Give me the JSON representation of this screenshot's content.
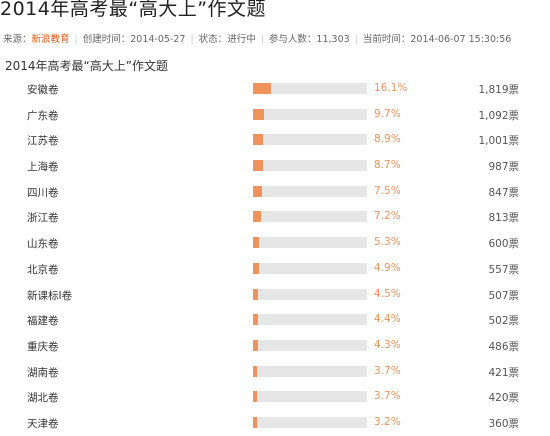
{
  "page_title": "2014年高考最“高大上”作文题",
  "meta": {
    "source_label": "来源：",
    "source_value": "新浪教育",
    "created_label": "创建时间：",
    "created_value": "2014-05-27",
    "status_label": "状态：",
    "status_value": "进行中",
    "participants_label": "参与人数：",
    "participants_value": "11,303",
    "current_time_label": "当前时间：",
    "current_time_value": "2014-06-07 15:30:56"
  },
  "question_title": "2014年高考最“高大上”作文题",
  "colors": {
    "bar_fill": "#f0935b",
    "bar_track": "#e6e6e6",
    "accent": "#e85a10"
  },
  "chart_data": {
    "type": "bar",
    "categories": [
      "安徽卷",
      "广东卷",
      "江苏卷",
      "上海卷",
      "四川卷",
      "浙江卷",
      "山东卷",
      "北京卷",
      "新课标I卷",
      "福建卷",
      "重庆卷",
      "湖南卷",
      "湖北卷",
      "天津卷"
    ],
    "values": [
      16.1,
      9.7,
      8.9,
      8.7,
      7.5,
      7.2,
      5.3,
      4.9,
      4.5,
      4.4,
      4.3,
      3.7,
      3.7,
      3.2
    ],
    "vote_counts": [
      1819,
      1092,
      1001,
      987,
      847,
      813,
      600,
      557,
      507,
      502,
      486,
      421,
      420,
      360
    ],
    "xlim": [
      0,
      100
    ]
  },
  "rows": [
    {
      "label": "安徽卷",
      "pct": "16.1%",
      "votes": "1,819票"
    },
    {
      "label": "广东卷",
      "pct": "9.7%",
      "votes": "1,092票"
    },
    {
      "label": "江苏卷",
      "pct": "8.9%",
      "votes": "1,001票"
    },
    {
      "label": "上海卷",
      "pct": "8.7%",
      "votes": "987票"
    },
    {
      "label": "四川卷",
      "pct": "7.5%",
      "votes": "847票"
    },
    {
      "label": "浙江卷",
      "pct": "7.2%",
      "votes": "813票"
    },
    {
      "label": "山东卷",
      "pct": "5.3%",
      "votes": "600票"
    },
    {
      "label": "北京卷",
      "pct": "4.9%",
      "votes": "557票"
    },
    {
      "label": "新课标I卷",
      "pct": "4.5%",
      "votes": "507票"
    },
    {
      "label": "福建卷",
      "pct": "4.4%",
      "votes": "502票"
    },
    {
      "label": "重庆卷",
      "pct": "4.3%",
      "votes": "486票"
    },
    {
      "label": "湖南卷",
      "pct": "3.7%",
      "votes": "421票"
    },
    {
      "label": "湖北卷",
      "pct": "3.7%",
      "votes": "420票"
    },
    {
      "label": "天津卷",
      "pct": "3.2%",
      "votes": "360票"
    }
  ]
}
